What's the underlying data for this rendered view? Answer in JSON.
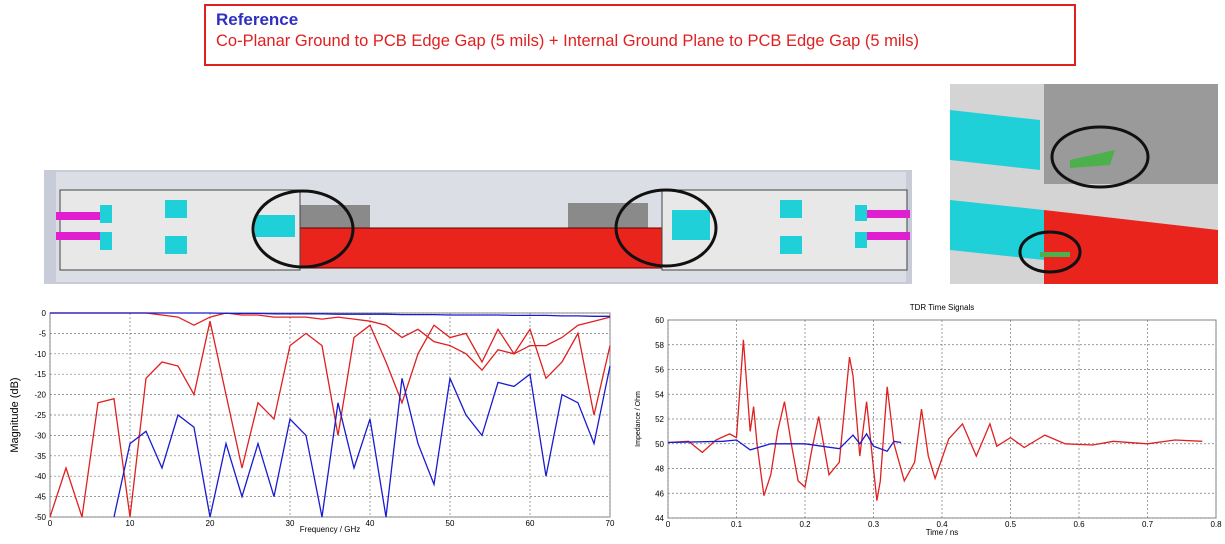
{
  "header": {
    "title": "Reference",
    "subtitle": "Co-Planar Ground  to PCB Edge Gap (5 mils) + Internal Ground Plane to PCB Edge Gap (5 mils)"
  },
  "chart_data": [
    {
      "type": "line",
      "xlabel": "Frequency / GHz",
      "ylabel": "Magnitude (dB)",
      "grid": true,
      "xlim": [
        0,
        70
      ],
      "xticks": [
        0,
        10,
        20,
        30,
        40,
        50,
        60,
        70
      ],
      "ylim": [
        -50,
        0
      ],
      "yticks": [
        0,
        -5,
        -10,
        -15,
        -20,
        -25,
        -30,
        -35,
        -40,
        -45,
        -50
      ],
      "x": [
        0,
        2,
        4,
        6,
        8,
        10,
        12,
        14,
        16,
        18,
        20,
        22,
        24,
        26,
        28,
        30,
        32,
        34,
        36,
        38,
        40,
        42,
        44,
        46,
        48,
        50,
        52,
        54,
        56,
        58,
        60,
        62,
        64,
        66,
        68,
        70
      ],
      "series": [
        {
          "color": "#e02020",
          "values": [
            -50,
            -38,
            -50,
            -22,
            -21,
            -50,
            -16,
            -12,
            -13,
            -20,
            -2,
            -20,
            -38,
            -22,
            -26,
            -8,
            -5,
            -8,
            -30,
            -6,
            -3,
            -12,
            -22,
            -10,
            -3,
            -6,
            -5,
            -12,
            -4,
            -10,
            -4,
            -16,
            -12,
            -5,
            -25,
            -8
          ]
        },
        {
          "color": "#e02020",
          "values": [
            0,
            0,
            0,
            0,
            0,
            0,
            0,
            -0.5,
            -1,
            -3,
            -1,
            0,
            -0.5,
            -0.5,
            -1,
            -1,
            -1,
            -1.5,
            -1,
            -1.5,
            -2,
            -3,
            -6,
            -4,
            -7,
            -8,
            -10,
            -14,
            -9,
            -10,
            -8,
            -8,
            -6,
            -3,
            -2,
            -1
          ]
        },
        {
          "color": "#1a1ad0",
          "values": [
            null,
            null,
            null,
            null,
            -50,
            -32,
            -29,
            -38,
            -25,
            -28,
            -50,
            -32,
            -45,
            -32,
            -45,
            -26,
            -30,
            -50,
            -22,
            -38,
            -26,
            -50,
            -16,
            -32,
            -42,
            -16,
            -25,
            -30,
            -17,
            -18,
            -15,
            -40,
            -20,
            -22,
            -32,
            -13
          ]
        },
        {
          "color": "#1a1ad0",
          "values": [
            0,
            0,
            0,
            0,
            0,
            0,
            0,
            0,
            0,
            0,
            0,
            -0.1,
            -0.1,
            -0.1,
            -0.2,
            -0.2,
            -0.2,
            -0.2,
            -0.3,
            -0.3,
            -0.3,
            -0.3,
            -0.4,
            -0.4,
            -0.4,
            -0.5,
            -0.5,
            -0.5,
            -0.5,
            -0.6,
            -0.6,
            -0.6,
            -0.7,
            -0.7,
            -0.8,
            -0.8
          ]
        }
      ]
    },
    {
      "type": "line",
      "title": "TDR Time Signals",
      "xlabel": "Time / ns",
      "ylabel": "Impedance / Ohm",
      "grid": true,
      "xlim": [
        0,
        0.8
      ],
      "xticks": [
        0,
        0.1,
        0.2,
        0.3,
        0.4,
        0.5,
        0.6,
        0.7,
        0.8
      ],
      "ylim": [
        44,
        60
      ],
      "yticks": [
        44,
        46,
        48,
        50,
        52,
        54,
        56,
        58,
        60
      ],
      "series": [
        {
          "color": "#e02020",
          "x": [
            0,
            0.03,
            0.05,
            0.07,
            0.09,
            0.1,
            0.11,
            0.12,
            0.125,
            0.13,
            0.14,
            0.15,
            0.16,
            0.17,
            0.18,
            0.19,
            0.2,
            0.21,
            0.22,
            0.235,
            0.25,
            0.265,
            0.27,
            0.28,
            0.29,
            0.3,
            0.305,
            0.31,
            0.32,
            0.33,
            0.345,
            0.36,
            0.37,
            0.38,
            0.39,
            0.41,
            0.43,
            0.45,
            0.47,
            0.48,
            0.5,
            0.52,
            0.55,
            0.58,
            0.62,
            0.65,
            0.7,
            0.74,
            0.78
          ],
          "values": [
            50.1,
            50.2,
            49.3,
            50.3,
            50.8,
            50.5,
            58.4,
            51,
            53,
            50,
            45.8,
            47.5,
            51,
            53.4,
            50,
            47,
            46.5,
            49.5,
            52.2,
            47.5,
            48.5,
            57,
            55.5,
            49,
            53.4,
            48,
            45.4,
            47,
            54.6,
            50,
            47,
            48.5,
            52.8,
            49,
            47.2,
            50.4,
            51.6,
            49,
            51.6,
            49.8,
            50.5,
            49.7,
            50.7,
            50,
            49.9,
            50.2,
            50,
            50.3,
            50.2
          ]
        },
        {
          "color": "#1a1ad0",
          "x": [
            0,
            0.08,
            0.1,
            0.12,
            0.15,
            0.2,
            0.25,
            0.27,
            0.28,
            0.29,
            0.3,
            0.32,
            0.33,
            0.34
          ],
          "values": [
            50.1,
            50.2,
            50.3,
            49.5,
            50,
            50,
            49.6,
            50.7,
            50,
            50.8,
            49.8,
            49.4,
            50.2,
            50.1
          ]
        }
      ]
    }
  ]
}
